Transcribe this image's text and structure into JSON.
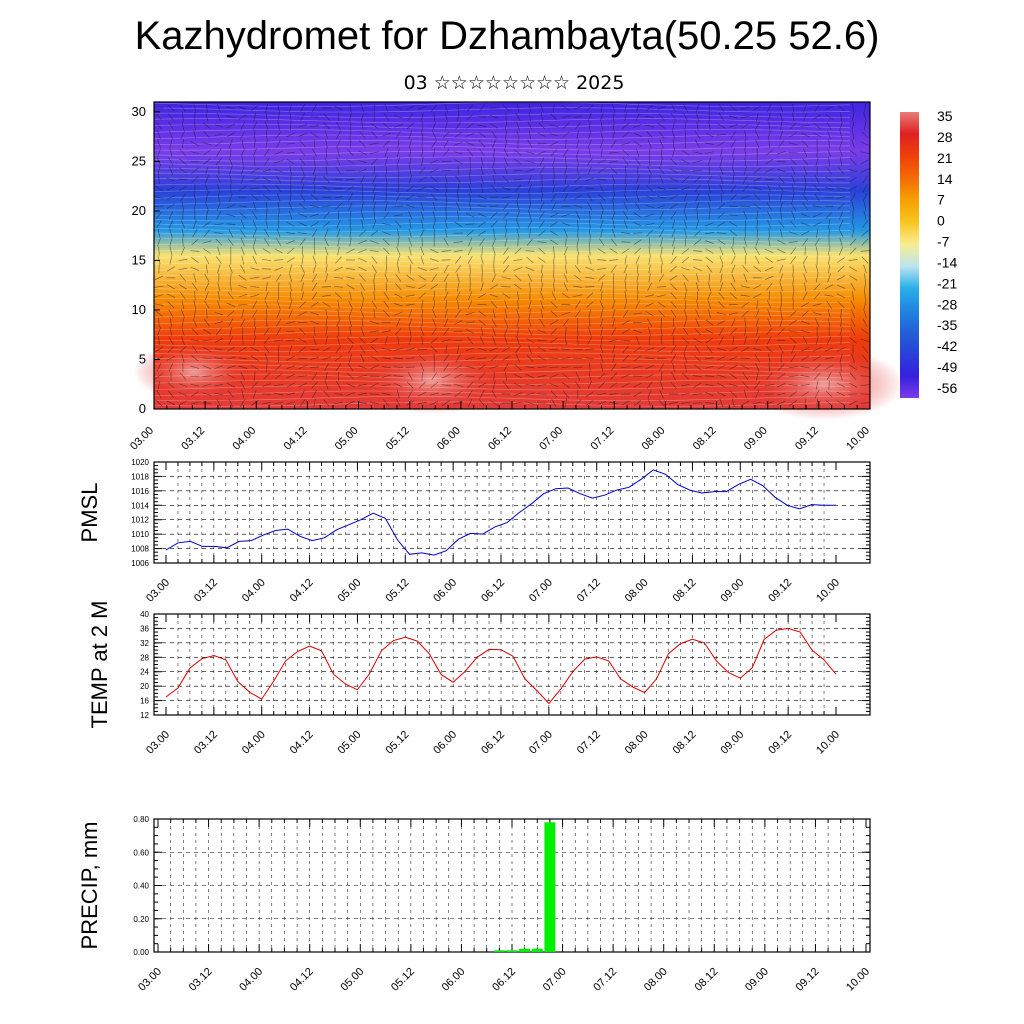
{
  "header": {
    "title": "Kazhydromet for Dzhambayta(50.25 52.6)",
    "subtitle": "03 ☆☆☆☆☆☆☆☆ 2025"
  },
  "chart_data": [
    {
      "type": "heatmap",
      "name": "cross-section",
      "x_ticks": [
        "03.00",
        "03.12",
        "04.00",
        "04.12",
        "05.00",
        "05.12",
        "06.00",
        "06.12",
        "07.00",
        "07.12",
        "08.00",
        "08.12",
        "09.00",
        "09.12",
        "10.00"
      ],
      "y_ticks": [
        0,
        5,
        10,
        15,
        20,
        25,
        30
      ],
      "ylim": [
        0,
        31
      ],
      "colorbar_labels": [
        "35",
        "28",
        "21",
        "14",
        "7",
        "0",
        "-7",
        "-14",
        "-21",
        "-28",
        "-35",
        "-42",
        "-49",
        "-56"
      ],
      "colorbar_colors": [
        "#e87c78",
        "#e02020",
        "#f0400a",
        "#f46b05",
        "#f7a100",
        "#f8c520",
        "#f8ee90",
        "#bfe4f0",
        "#2ab0ea",
        "#1f86e0",
        "#2261d8",
        "#2a40d8",
        "#3520e0",
        "#7b3ce8"
      ],
      "contour_profile": [
        {
          "z": 0,
          "value": 30
        },
        {
          "z": 7,
          "value": 22
        },
        {
          "z": 11,
          "value": 10
        },
        {
          "z": 15.5,
          "value": -5
        },
        {
          "z": 18,
          "value": -25
        },
        {
          "z": 22,
          "value": -42
        },
        {
          "z": 26,
          "value": -58
        },
        {
          "z": 31,
          "value": -50
        }
      ],
      "vectors": "wind barbs overlay"
    },
    {
      "type": "line",
      "name": "pmsl",
      "ylabel": "PMSL",
      "color": "#0000cc",
      "ylim": [
        1006,
        1020
      ],
      "y_ticks": [
        1006,
        1008,
        1010,
        1012,
        1014,
        1016,
        1018,
        1020
      ],
      "x_ticks": [
        "03.00",
        "03.12",
        "04.00",
        "04.12",
        "05.00",
        "05.12",
        "06.00",
        "06.12",
        "07.00",
        "07.12",
        "08.00",
        "08.12",
        "09.00",
        "09.12",
        "10.00"
      ],
      "values": [
        1007.8,
        1008.8,
        1009.0,
        1008.3,
        1008.3,
        1008.1,
        1009.0,
        1009.1,
        1009.9,
        1010.5,
        1010.7,
        1009.7,
        1009.1,
        1009.5,
        1010.6,
        1011.3,
        1012.0,
        1012.9,
        1012.2,
        1009.2,
        1007.2,
        1007.4,
        1007.1,
        1007.7,
        1009.3,
        1010.1,
        1010.0,
        1011.0,
        1011.6,
        1013.0,
        1014.2,
        1015.6,
        1016.3,
        1016.4,
        1015.6,
        1015.0,
        1015.4,
        1016.1,
        1016.5,
        1017.6,
        1018.9,
        1018.3,
        1016.9,
        1016.1,
        1015.7,
        1015.9,
        1015.9,
        1016.9,
        1017.6,
        1016.7,
        1015.1,
        1014.0,
        1013.5,
        1014.1,
        1014.0,
        1014.0
      ]
    },
    {
      "type": "line",
      "name": "temp2m",
      "ylabel": "TEMP at 2 M",
      "color": "#dd0000",
      "ylim": [
        12,
        40
      ],
      "y_ticks": [
        12,
        16,
        20,
        24,
        28,
        32,
        36,
        40
      ],
      "x_ticks": [
        "03.00",
        "03.12",
        "04.00",
        "04.12",
        "05.00",
        "05.12",
        "06.00",
        "06.12",
        "07.00",
        "07.12",
        "08.00",
        "08.12",
        "09.00",
        "09.12",
        "10.00"
      ],
      "values": [
        17.0,
        19.5,
        25.0,
        27.6,
        28.5,
        27.3,
        21.3,
        18.3,
        16.4,
        21.4,
        27.0,
        29.6,
        31.1,
        29.8,
        23.3,
        20.6,
        19.0,
        23.4,
        29.8,
        32.6,
        33.6,
        32.5,
        29.0,
        23.2,
        21.1,
        24.1,
        28.0,
        30.2,
        30.1,
        28.3,
        22.0,
        18.8,
        15.2,
        19.2,
        24.0,
        27.5,
        28.1,
        27.0,
        22.0,
        19.8,
        18.2,
        22.0,
        29.0,
        31.8,
        33.0,
        32.0,
        27.0,
        23.8,
        22.2,
        25.1,
        33.0,
        35.5,
        36.0,
        35.0,
        30.0,
        27.3,
        23.3
      ]
    },
    {
      "type": "bar",
      "name": "precip",
      "ylabel": "PRECIP, mm",
      "color": "#00ee00",
      "ylim": [
        0,
        0.8
      ],
      "y_ticks": [
        "0.00",
        "0.20",
        "0.40",
        "0.60",
        "0.80"
      ],
      "x_ticks": [
        "03.00",
        "03.12",
        "04.00",
        "04.12",
        "05.00",
        "05.12",
        "06.00",
        "06.12",
        "07.00",
        "07.12",
        "08.00",
        "08.12",
        "09.00",
        "09.12",
        "10.00"
      ],
      "bars": [
        {
          "x_hour": 81,
          "value": 0.01
        },
        {
          "x_hour": 84,
          "value": 0.01
        },
        {
          "x_hour": 87,
          "value": 0.02
        },
        {
          "x_hour": 90,
          "value": 0.02
        },
        {
          "x_hour": 93,
          "value": 0.78
        }
      ]
    }
  ]
}
